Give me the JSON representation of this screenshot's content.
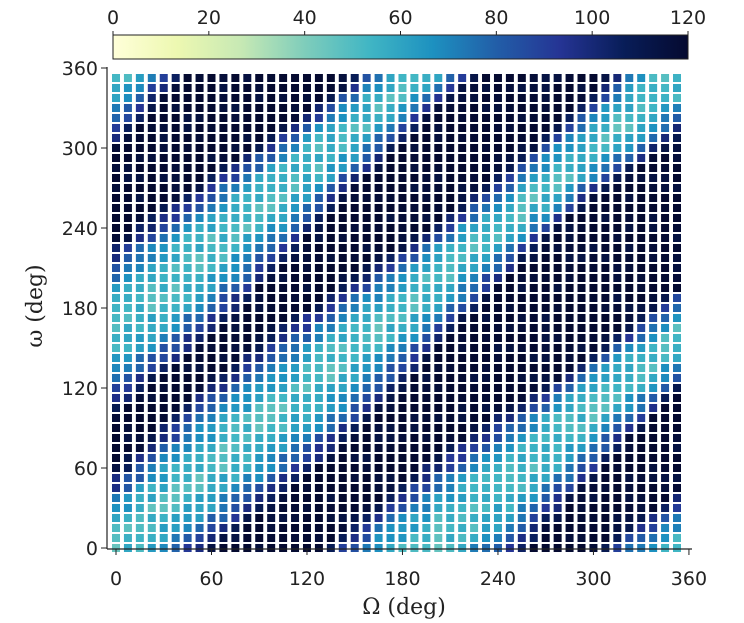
{
  "chart_data": {
    "type": "heatmap",
    "title": "",
    "xlabel": "Ω (deg)",
    "ylabel": "ω (deg)",
    "xlim": [
      0,
      360
    ],
    "ylim": [
      0,
      360
    ],
    "x_ticks": [
      "0",
      "60",
      "120",
      "180",
      "240",
      "300",
      "360"
    ],
    "y_ticks": [
      "0",
      "60",
      "120",
      "180",
      "240",
      "300",
      "360"
    ],
    "colorbar": {
      "range": [
        0,
        120
      ],
      "ticks": [
        "0",
        "20",
        "40",
        "60",
        "80",
        "100",
        "120"
      ],
      "colormap": "YlGnBu",
      "stops": [
        "#ffffd9",
        "#edf8b1",
        "#c7e9b4",
        "#7fcdbb",
        "#41b6c4",
        "#1d91c0",
        "#225ea8",
        "#253494",
        "#081d58",
        "#050a30"
      ]
    },
    "grid_step_deg": 7.5,
    "grid_points_per_axis": 48,
    "band_description": "Two diagonal bands of lower values (~50-70) running from lower-left to upper-right, separated by high values (~120)"
  }
}
